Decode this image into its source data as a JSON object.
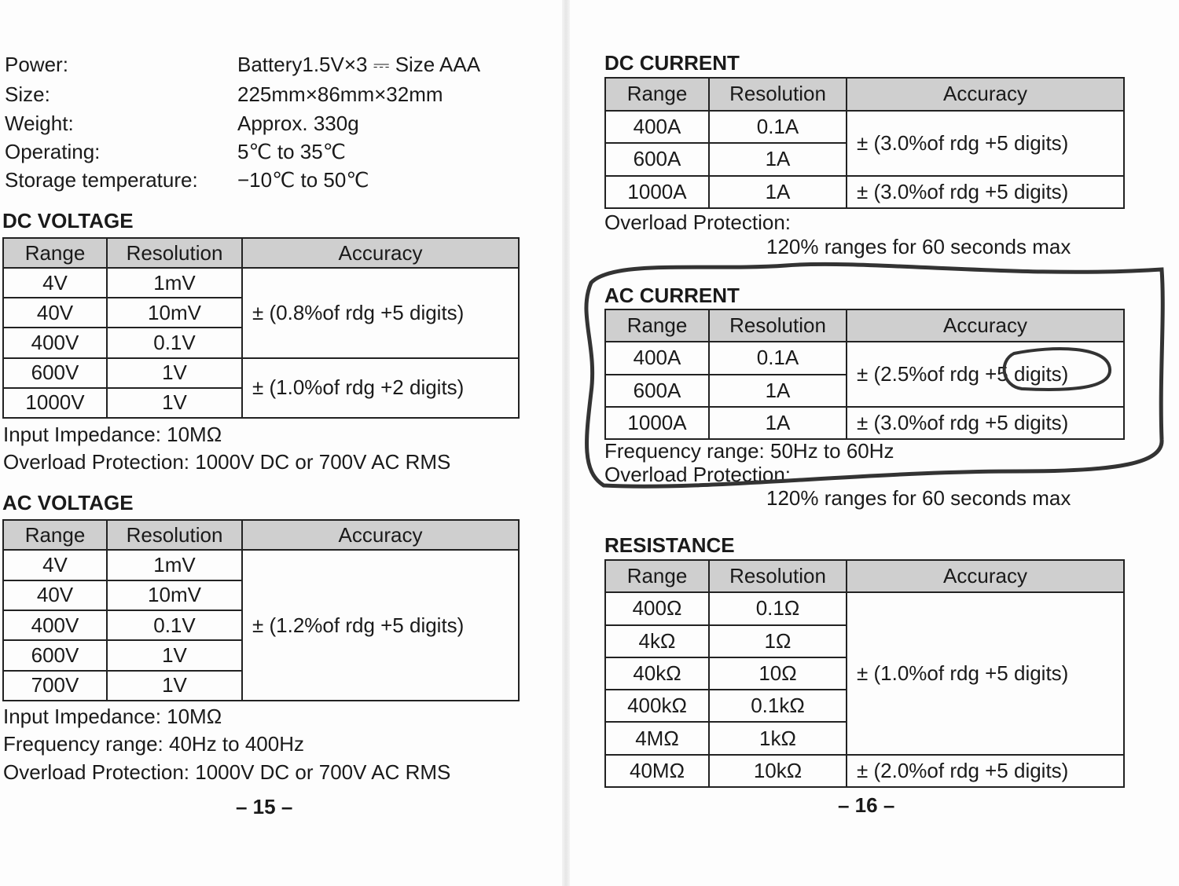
{
  "left_page": {
    "specs": [
      {
        "label": "Power:",
        "value": "Battery1.5V×3 ⎓ Size AAA"
      },
      {
        "label": "Size:",
        "value": "225mm×86mm×32mm"
      },
      {
        "label": "Weight:",
        "value": "Approx. 330g"
      },
      {
        "label": "Operating:",
        "value": "5℃  to 35℃"
      },
      {
        "label": "Storage temperature:",
        "value": "−10℃  to 50℃"
      }
    ],
    "sections": [
      {
        "title": "DC VOLTAGE",
        "table": {
          "headers": [
            "Range",
            "Resolution",
            "Accuracy"
          ],
          "rows": [
            [
              "4V",
              "1mV",
              "± (0.8%of rdg +5 digits)"
            ],
            [
              "40V",
              "10mV",
              null
            ],
            [
              "400V",
              "0.1V",
              null
            ],
            [
              "600V",
              "1V",
              "± (1.0%of rdg +2 digits)"
            ],
            [
              "1000V",
              "1V",
              null
            ]
          ]
        },
        "notes": [
          "Input Impedance: 10MΩ",
          "Overload Protection: 1000V DC or 700V AC RMS"
        ]
      },
      {
        "title": "AC VOLTAGE",
        "table": {
          "headers": [
            "Range",
            "Resolution",
            "Accuracy"
          ],
          "rows": [
            [
              "4V",
              "1mV",
              "± (1.2%of rdg +5 digits)"
            ],
            [
              "40V",
              "10mV",
              null
            ],
            [
              "400V",
              "0.1V",
              null
            ],
            [
              "600V",
              "1V",
              null
            ],
            [
              "700V",
              "1V",
              null
            ]
          ]
        },
        "notes": [
          "Input Impedance: 10MΩ",
          "Frequency range: 40Hz to 400Hz",
          "Overload Protection: 1000V DC or 700V AC RMS"
        ]
      }
    ],
    "page_number": "– 15 –"
  },
  "right_page": {
    "sections": [
      {
        "title": "DC CURRENT",
        "table": {
          "headers": [
            "Range",
            "Resolution",
            "Accuracy"
          ],
          "rows": [
            [
              "400A",
              "0.1A",
              "± (3.0%of rdg +5 digits)"
            ],
            [
              "600A",
              "1A",
              null
            ],
            [
              "1000A",
              "1A",
              "± (3.0%of rdg +5 digits)"
            ]
          ]
        },
        "notes": [
          "Overload Protection:",
          "120% ranges for 60 seconds max"
        ]
      },
      {
        "title": "AC CURRENT",
        "table": {
          "headers": [
            "Range",
            "Resolution",
            "Accuracy"
          ],
          "rows": [
            [
              "400A",
              "0.1A",
              "± (2.5%of rdg +5 digits)"
            ],
            [
              "600A",
              "1A",
              null
            ],
            [
              "1000A",
              "1A",
              "± (3.0%of rdg +5 digits)"
            ]
          ]
        },
        "notes": [
          "Frequency range: 50Hz to 60Hz",
          "Overload Protection:",
          "120% ranges for 60 seconds max"
        ]
      },
      {
        "title": "RESISTANCE",
        "table": {
          "headers": [
            "Range",
            "Resolution",
            "Accuracy"
          ],
          "rows": [
            [
              "400Ω",
              "0.1Ω",
              "± (1.0%of rdg +5 digits)"
            ],
            [
              "4kΩ",
              "1Ω",
              null
            ],
            [
              "40kΩ",
              "10Ω",
              null
            ],
            [
              "400kΩ",
              "0.1kΩ",
              null
            ],
            [
              "4MΩ",
              "1kΩ",
              null
            ],
            [
              "40MΩ",
              "10kΩ",
              "± (2.0%of rdg +5 digits)"
            ]
          ]
        },
        "notes": []
      }
    ],
    "page_number": "– 16 –"
  }
}
